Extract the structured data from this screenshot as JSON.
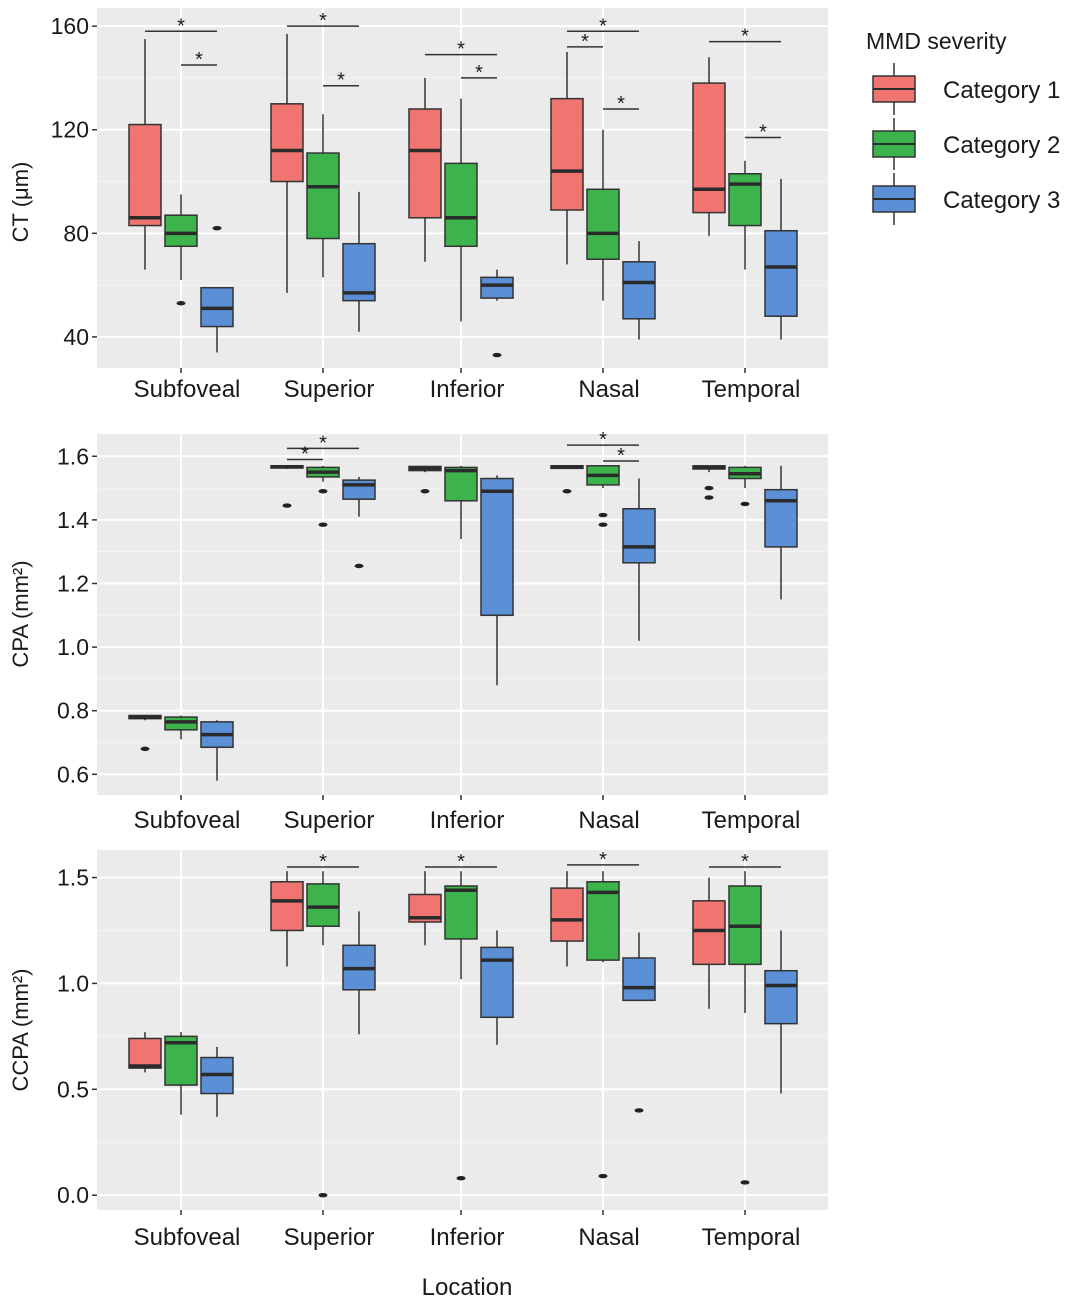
{
  "legend": {
    "title": "MMD severity",
    "items": [
      {
        "label": "Category 1",
        "color": "#F07470"
      },
      {
        "label": "Category 2",
        "color": "#3CB44B"
      },
      {
        "label": "Category 3",
        "color": "#5B8FD6"
      }
    ]
  },
  "xlabel": "Location",
  "chart_data": [
    {
      "type": "boxplot",
      "ylabel": "CT (μm)",
      "categories": [
        "Subfoveal",
        "Superior",
        "Inferior",
        "Nasal",
        "Temporal"
      ],
      "ylim": [
        28,
        167
      ],
      "yticks": [
        40,
        80,
        120,
        160
      ],
      "series": [
        {
          "name": "Category 1",
          "boxes": [
            {
              "min": 66,
              "q1": 83,
              "median": 86,
              "q3": 122,
              "max": 155,
              "outliers": []
            },
            {
              "min": 57,
              "q1": 100,
              "median": 112,
              "q3": 130,
              "max": 157,
              "outliers": []
            },
            {
              "min": 69,
              "q1": 86,
              "median": 112,
              "q3": 128,
              "max": 140,
              "outliers": []
            },
            {
              "min": 68,
              "q1": 89,
              "median": 104,
              "q3": 132,
              "max": 150,
              "outliers": []
            },
            {
              "min": 79,
              "q1": 88,
              "median": 97,
              "q3": 138,
              "max": 148,
              "outliers": []
            }
          ]
        },
        {
          "name": "Category 2",
          "boxes": [
            {
              "min": 62,
              "q1": 75,
              "median": 80,
              "q3": 87,
              "max": 95,
              "outliers": [
                53
              ]
            },
            {
              "min": 63,
              "q1": 78,
              "median": 98,
              "q3": 111,
              "max": 126,
              "outliers": []
            },
            {
              "min": 46,
              "q1": 75,
              "median": 86,
              "q3": 107,
              "max": 132,
              "outliers": []
            },
            {
              "min": 54,
              "q1": 70,
              "median": 80,
              "q3": 97,
              "max": 120,
              "outliers": []
            },
            {
              "min": 66,
              "q1": 83,
              "median": 99,
              "q3": 103,
              "max": 108,
              "outliers": []
            }
          ]
        },
        {
          "name": "Category 3",
          "boxes": [
            {
              "min": 34,
              "q1": 44,
              "median": 51,
              "q3": 59,
              "max": 59,
              "outliers": [
                82
              ]
            },
            {
              "min": 42,
              "q1": 54,
              "median": 57,
              "q3": 76,
              "max": 96,
              "outliers": []
            },
            {
              "min": 54,
              "q1": 55,
              "median": 60,
              "q3": 63,
              "max": 66,
              "outliers": [
                33
              ]
            },
            {
              "min": 39,
              "q1": 47,
              "median": 61,
              "q3": 69,
              "max": 77,
              "outliers": []
            },
            {
              "min": 39,
              "q1": 48,
              "median": 67,
              "q3": 81,
              "max": 101,
              "outliers": []
            }
          ]
        }
      ],
      "significance": [
        {
          "location": 0,
          "from": 0,
          "to": 2,
          "y": 158,
          "label": "*"
        },
        {
          "location": 0,
          "from": 1,
          "to": 2,
          "y": 145,
          "label": "*"
        },
        {
          "location": 1,
          "from": 0,
          "to": 2,
          "y": 160,
          "label": "*"
        },
        {
          "location": 1,
          "from": 1,
          "to": 2,
          "y": 137,
          "label": "*"
        },
        {
          "location": 2,
          "from": 0,
          "to": 2,
          "y": 149,
          "label": "*"
        },
        {
          "location": 2,
          "from": 1,
          "to": 2,
          "y": 140,
          "label": "*"
        },
        {
          "location": 3,
          "from": 0,
          "to": 2,
          "y": 158,
          "label": "*"
        },
        {
          "location": 3,
          "from": 0,
          "to": 1,
          "y": 152,
          "label": "*"
        },
        {
          "location": 3,
          "from": 1,
          "to": 2,
          "y": 128,
          "label": "*"
        },
        {
          "location": 4,
          "from": 0,
          "to": 2,
          "y": 154,
          "label": "*"
        },
        {
          "location": 4,
          "from": 1,
          "to": 2,
          "y": 117,
          "label": "*"
        }
      ]
    },
    {
      "type": "boxplot",
      "ylabel": "CPA (mm²)",
      "categories": [
        "Subfoveal",
        "Superior",
        "Inferior",
        "Nasal",
        "Temporal"
      ],
      "ylim": [
        0.535,
        1.67
      ],
      "yticks": [
        0.6,
        0.8,
        1.0,
        1.2,
        1.4,
        1.6
      ],
      "ytick_labels": [
        "0.6",
        "0.8",
        "1.0",
        "1.2",
        "1.4",
        "1.6"
      ],
      "series": [
        {
          "name": "Category 1",
          "boxes": [
            {
              "min": 0.77,
              "q1": 0.775,
              "median": 0.78,
              "q3": 0.785,
              "max": 0.785,
              "outliers": [
                0.68
              ]
            },
            {
              "min": 1.56,
              "q1": 1.563,
              "median": 1.567,
              "q3": 1.57,
              "max": 1.57,
              "outliers": [
                1.445
              ]
            },
            {
              "min": 1.55,
              "q1": 1.555,
              "median": 1.562,
              "q3": 1.568,
              "max": 1.57,
              "outliers": [
                1.49
              ]
            },
            {
              "min": 1.56,
              "q1": 1.562,
              "median": 1.567,
              "q3": 1.57,
              "max": 1.57,
              "outliers": [
                1.49
              ]
            },
            {
              "min": 1.55,
              "q1": 1.56,
              "median": 1.565,
              "q3": 1.57,
              "max": 1.57,
              "outliers": [
                1.47,
                1.5
              ]
            }
          ]
        },
        {
          "name": "Category 2",
          "boxes": [
            {
              "min": 0.71,
              "q1": 0.74,
              "median": 0.765,
              "q3": 0.78,
              "max": 0.785,
              "outliers": []
            },
            {
              "min": 1.52,
              "q1": 1.535,
              "median": 1.55,
              "q3": 1.565,
              "max": 1.57,
              "outliers": [
                1.385,
                1.49
              ]
            },
            {
              "min": 1.34,
              "q1": 1.46,
              "median": 1.555,
              "q3": 1.565,
              "max": 1.57,
              "outliers": []
            },
            {
              "min": 1.5,
              "q1": 1.51,
              "median": 1.54,
              "q3": 1.57,
              "max": 1.57,
              "outliers": [
                1.385,
                1.415
              ]
            },
            {
              "min": 1.5,
              "q1": 1.53,
              "median": 1.545,
              "q3": 1.565,
              "max": 1.57,
              "outliers": [
                1.45
              ]
            }
          ]
        },
        {
          "name": "Category 3",
          "boxes": [
            {
              "min": 0.58,
              "q1": 0.685,
              "median": 0.725,
              "q3": 0.765,
              "max": 0.77,
              "outliers": []
            },
            {
              "min": 1.41,
              "q1": 1.465,
              "median": 1.51,
              "q3": 1.525,
              "max": 1.535,
              "outliers": [
                1.255
              ]
            },
            {
              "min": 0.88,
              "q1": 1.1,
              "median": 1.49,
              "q3": 1.53,
              "max": 1.54,
              "outliers": []
            },
            {
              "min": 1.02,
              "q1": 1.265,
              "median": 1.315,
              "q3": 1.435,
              "max": 1.53,
              "outliers": []
            },
            {
              "min": 1.15,
              "q1": 1.315,
              "median": 1.46,
              "q3": 1.495,
              "max": 1.57,
              "outliers": []
            }
          ]
        }
      ],
      "significance": [
        {
          "location": 1,
          "from": 0,
          "to": 2,
          "y": 1.625,
          "label": "*"
        },
        {
          "location": 1,
          "from": 0,
          "to": 1,
          "y": 1.59,
          "label": "*"
        },
        {
          "location": 3,
          "from": 0,
          "to": 2,
          "y": 1.635,
          "label": "*"
        },
        {
          "location": 3,
          "from": 1,
          "to": 2,
          "y": 1.585,
          "label": "*"
        }
      ]
    },
    {
      "type": "boxplot",
      "ylabel": "CCPA (mm²)",
      "categories": [
        "Subfoveal",
        "Superior",
        "Inferior",
        "Nasal",
        "Temporal"
      ],
      "ylim": [
        -0.07,
        1.63
      ],
      "yticks": [
        0.0,
        0.5,
        1.0,
        1.5
      ],
      "ytick_labels": [
        "0.0",
        "0.5",
        "1.0",
        "1.5"
      ],
      "series": [
        {
          "name": "Category 1",
          "boxes": [
            {
              "min": 0.58,
              "q1": 0.6,
              "median": 0.61,
              "q3": 0.74,
              "max": 0.77,
              "outliers": []
            },
            {
              "min": 1.08,
              "q1": 1.25,
              "median": 1.39,
              "q3": 1.48,
              "max": 1.53,
              "outliers": []
            },
            {
              "min": 1.18,
              "q1": 1.29,
              "median": 1.31,
              "q3": 1.42,
              "max": 1.53,
              "outliers": []
            },
            {
              "min": 1.08,
              "q1": 1.2,
              "median": 1.3,
              "q3": 1.45,
              "max": 1.53,
              "outliers": []
            },
            {
              "min": 0.88,
              "q1": 1.09,
              "median": 1.25,
              "q3": 1.39,
              "max": 1.5,
              "outliers": []
            }
          ]
        },
        {
          "name": "Category 2",
          "boxes": [
            {
              "min": 0.38,
              "q1": 0.52,
              "median": 0.72,
              "q3": 0.75,
              "max": 0.77,
              "outliers": []
            },
            {
              "min": 1.18,
              "q1": 1.27,
              "median": 1.36,
              "q3": 1.47,
              "max": 1.53,
              "outliers": [
                0.0
              ]
            },
            {
              "min": 1.02,
              "q1": 1.21,
              "median": 1.44,
              "q3": 1.46,
              "max": 1.53,
              "outliers": [
                0.08
              ]
            },
            {
              "min": 1.1,
              "q1": 1.11,
              "median": 1.43,
              "q3": 1.48,
              "max": 1.53,
              "outliers": [
                0.09
              ]
            },
            {
              "min": 0.86,
              "q1": 1.09,
              "median": 1.27,
              "q3": 1.46,
              "max": 1.53,
              "outliers": [
                0.06
              ]
            }
          ]
        },
        {
          "name": "Category 3",
          "boxes": [
            {
              "min": 0.37,
              "q1": 0.48,
              "median": 0.57,
              "q3": 0.65,
              "max": 0.7,
              "outliers": []
            },
            {
              "min": 0.76,
              "q1": 0.97,
              "median": 1.07,
              "q3": 1.18,
              "max": 1.34,
              "outliers": []
            },
            {
              "min": 0.71,
              "q1": 0.84,
              "median": 1.11,
              "q3": 1.17,
              "max": 1.25,
              "outliers": []
            },
            {
              "min": 0.92,
              "q1": 0.92,
              "median": 0.98,
              "q3": 1.12,
              "max": 1.24,
              "outliers": [
                0.4
              ]
            },
            {
              "min": 0.48,
              "q1": 0.81,
              "median": 0.99,
              "q3": 1.06,
              "max": 1.25,
              "outliers": []
            }
          ]
        }
      ],
      "significance": [
        {
          "location": 1,
          "from": 0,
          "to": 2,
          "y": 1.55,
          "label": "*"
        },
        {
          "location": 2,
          "from": 0,
          "to": 2,
          "y": 1.55,
          "label": "*"
        },
        {
          "location": 3,
          "from": 0,
          "to": 2,
          "y": 1.56,
          "label": "*"
        },
        {
          "location": 4,
          "from": 0,
          "to": 2,
          "y": 1.55,
          "label": "*"
        }
      ]
    }
  ]
}
